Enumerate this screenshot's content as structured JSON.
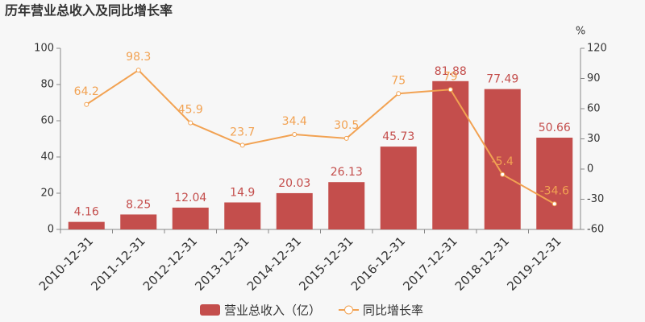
{
  "chart_data": {
    "type": "bar-line",
    "title": "历年营业总收入及同比增长率",
    "categories": [
      "2010-12-31",
      "2011-12-31",
      "2012-12-31",
      "2013-12-31",
      "2014-12-31",
      "2015-12-31",
      "2016-12-31",
      "2017-12-31",
      "2018-12-31",
      "2019-12-31"
    ],
    "series": [
      {
        "name": "营业总收入（亿）",
        "type": "bar",
        "color": "#c44e4c",
        "values": [
          4.16,
          8.25,
          12.04,
          14.9,
          20.03,
          26.13,
          45.73,
          81.88,
          77.49,
          50.66
        ]
      },
      {
        "name": "同比增长率",
        "type": "line",
        "axis": "y2",
        "color": "#f2a252",
        "values": [
          64.2,
          98.3,
          45.9,
          23.7,
          34.4,
          30.5,
          75,
          79,
          -5.4,
          -34.6
        ]
      }
    ],
    "ylim": [
      0,
      100
    ],
    "yticks": [
      0,
      20,
      40,
      60,
      80,
      100
    ],
    "y2label": "%",
    "y2lim": [
      -60,
      120
    ],
    "y2ticks": [
      -60,
      -30,
      0,
      30,
      60,
      90,
      120
    ],
    "legend": "bottom"
  }
}
